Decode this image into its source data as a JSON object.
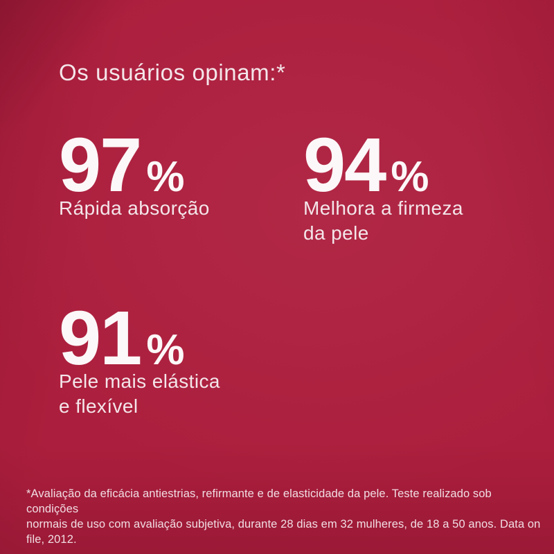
{
  "colors": {
    "background": "#AC1E3D",
    "title_text": "#F4E6EA",
    "stat_number_text": "#FCF7F8",
    "stat_label_text": "#F4E6EA",
    "footnote_text": "#F1DDE3"
  },
  "title": "Os usuários opinam:*",
  "stats": [
    {
      "value": "97",
      "unit": "%",
      "label": "Rápida absorção"
    },
    {
      "value": "94",
      "unit": "%",
      "label": "Melhora a firmeza\nda pele"
    },
    {
      "value": "91",
      "unit": "%",
      "label": "Pele mais elástica\ne flexível"
    }
  ],
  "footnote": "*Avaliação da eficácia antiestrias, refirmante e de elasticidade da pele. Teste realizado sob condições\nnormais de uso com avaliação subjetiva, durante 28 dias em 32 mulheres, de 18 a 50 anos. Data on\nfile, 2012."
}
